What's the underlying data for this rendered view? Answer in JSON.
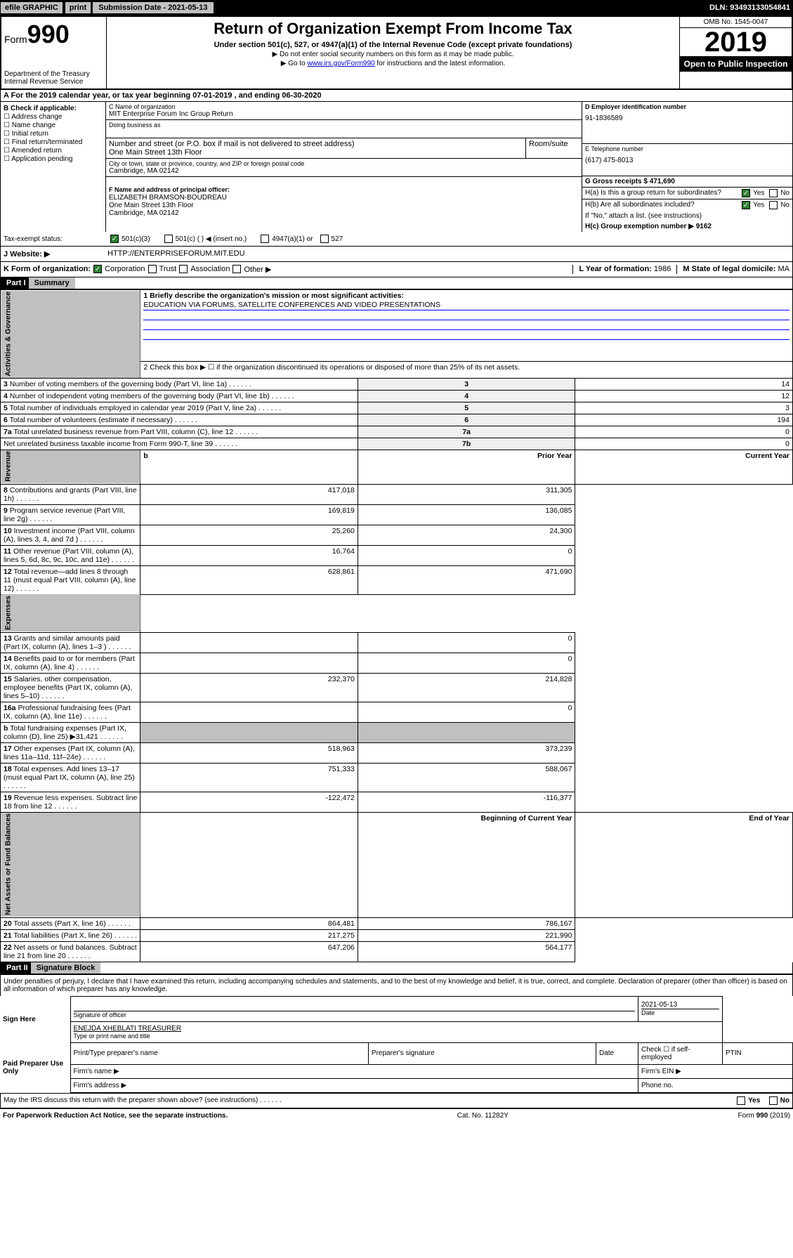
{
  "topbar": {
    "efile": "efile GRAPHIC",
    "print": "print",
    "sub_date_label": "Submission Date - 2021-05-13",
    "dln": "DLN: 93493133054841"
  },
  "header": {
    "form_label": "Form",
    "form_num": "990",
    "dept": "Department of the Treasury\nInternal Revenue Service",
    "title": "Return of Organization Exempt From Income Tax",
    "subtitle": "Under section 501(c), 527, or 4947(a)(1) of the Internal Revenue Code (except private foundations)",
    "note1": "▶ Do not enter social security numbers on this form as it may be made public.",
    "note2_pre": "▶ Go to ",
    "note2_link": "www.irs.gov/Form990",
    "note2_post": " for instructions and the latest information.",
    "omb": "OMB No. 1545-0047",
    "year": "2019",
    "open": "Open to Public Inspection"
  },
  "section_a": "A For the 2019 calendar year, or tax year beginning 07-01-2019    , and ending 06-30-2020",
  "col_b": {
    "hdr": "B Check if applicable:",
    "opts": [
      "Address change",
      "Name change",
      "Initial return",
      "Final return/terminated",
      "Amended return",
      "Application pending"
    ]
  },
  "org": {
    "name_lbl": "C Name of organization",
    "name": "MIT Enterprise Forum Inc Group Return",
    "dba_lbl": "Doing business as",
    "addr_lbl": "Number and street (or P.O. box if mail is not delivered to street address)",
    "room_lbl": "Room/suite",
    "addr": "One Main Street 13th Floor",
    "city_lbl": "City or town, state or province, country, and ZIP or foreign postal code",
    "city": "Cambridge, MA  02142",
    "officer_lbl": "F Name and address of principal officer:",
    "officer": "ELIZABETH BRAMSON-BOUDREAU\nOne Main Street 13th Floor\nCambridge, MA  02142"
  },
  "right": {
    "ein_lbl": "D Employer identification number",
    "ein": "91-1836589",
    "phone_lbl": "E Telephone number",
    "phone": "(617) 475-8013",
    "gross_lbl": "G Gross receipts $ 471,690",
    "ha": "H(a)  Is this a group return for subordinates?",
    "hb": "H(b)  Are all subordinates included?",
    "hb_note": "If \"No,\" attach a list. (see instructions)",
    "hc": "H(c)  Group exemption number ▶   9162",
    "yes": "Yes",
    "no": "No"
  },
  "tax_exempt": {
    "lbl": "Tax-exempt status:",
    "opts": [
      "501(c)(3)",
      "501(c) (  ) ◀ (insert no.)",
      "4947(a)(1) or",
      "527"
    ]
  },
  "website": {
    "lbl": "J  Website: ▶",
    "val": "HTTP://ENTERPRISEFORUM.MIT.EDU"
  },
  "korg": {
    "lbl": "K Form of organization:",
    "opts": [
      "Corporation",
      "Trust",
      "Association",
      "Other ▶"
    ],
    "year_lbl": "L Year of formation:",
    "year": "1986",
    "state_lbl": "M State of legal domicile:",
    "state": "MA"
  },
  "part1": {
    "hdr": "Part I",
    "title": "Summary"
  },
  "summary": {
    "q1": "1  Briefly describe the organization's mission or most significant activities:",
    "mission": "EDUCATION VIA FORUMS, SATELLITE CONFERENCES AND VIDEO PRESENTATIONS",
    "q2": "2   Check this box ▶ ☐  if the organization discontinued its operations or disposed of more than 25% of its net assets.",
    "rows_gov": [
      {
        "n": "3",
        "t": "Number of voting members of the governing body (Part VI, line 1a)",
        "c": "3",
        "v": "14"
      },
      {
        "n": "4",
        "t": "Number of independent voting members of the governing body (Part VI, line 1b)",
        "c": "4",
        "v": "12"
      },
      {
        "n": "5",
        "t": "Total number of individuals employed in calendar year 2019 (Part V, line 2a)",
        "c": "5",
        "v": "3"
      },
      {
        "n": "6",
        "t": "Total number of volunteers (estimate if necessary)",
        "c": "6",
        "v": "194"
      },
      {
        "n": "7a",
        "t": "Total unrelated business revenue from Part VIII, column (C), line 12",
        "c": "7a",
        "v": "0"
      },
      {
        "n": "",
        "t": "Net unrelated business taxable income from Form 990-T, line 39",
        "c": "7b",
        "v": "0"
      }
    ],
    "col_hdrs": {
      "b": "b",
      "prior": "Prior Year",
      "current": "Current Year"
    },
    "rows_rev": [
      {
        "n": "8",
        "t": "Contributions and grants (Part VIII, line 1h)",
        "p": "417,018",
        "c": "311,305"
      },
      {
        "n": "9",
        "t": "Program service revenue (Part VIII, line 2g)",
        "p": "169,819",
        "c": "136,085"
      },
      {
        "n": "10",
        "t": "Investment income (Part VIII, column (A), lines 3, 4, and 7d )",
        "p": "25,260",
        "c": "24,300"
      },
      {
        "n": "11",
        "t": "Other revenue (Part VIII, column (A), lines 5, 6d, 8c, 9c, 10c, and 11e)",
        "p": "16,764",
        "c": "0"
      },
      {
        "n": "12",
        "t": "Total revenue—add lines 8 through 11 (must equal Part VIII, column (A), line 12)",
        "p": "628,861",
        "c": "471,690"
      }
    ],
    "rows_exp": [
      {
        "n": "13",
        "t": "Grants and similar amounts paid (Part IX, column (A), lines 1–3 )",
        "p": "",
        "c": "0"
      },
      {
        "n": "14",
        "t": "Benefits paid to or for members (Part IX, column (A), line 4)",
        "p": "",
        "c": "0"
      },
      {
        "n": "15",
        "t": "Salaries, other compensation, employee benefits (Part IX, column (A), lines 5–10)",
        "p": "232,370",
        "c": "214,828"
      },
      {
        "n": "16a",
        "t": "Professional fundraising fees (Part IX, column (A), line 11e)",
        "p": "",
        "c": "0"
      },
      {
        "n": "b",
        "t": "Total fundraising expenses (Part IX, column (D), line 25) ▶31,421",
        "p": "",
        "c": "",
        "shaded": true
      },
      {
        "n": "17",
        "t": "Other expenses (Part IX, column (A), lines 11a–11d, 11f–24e)",
        "p": "518,963",
        "c": "373,239"
      },
      {
        "n": "18",
        "t": "Total expenses. Add lines 13–17 (must equal Part IX, column (A), line 25)",
        "p": "751,333",
        "c": "588,067"
      },
      {
        "n": "19",
        "t": "Revenue less expenses. Subtract line 18 from line 12",
        "p": "-122,472",
        "c": "-116,377"
      }
    ],
    "col_hdrs2": {
      "begin": "Beginning of Current Year",
      "end": "End of Year"
    },
    "rows_net": [
      {
        "n": "20",
        "t": "Total assets (Part X, line 16)",
        "p": "864,481",
        "c": "786,167"
      },
      {
        "n": "21",
        "t": "Total liabilities (Part X, line 26)",
        "p": "217,275",
        "c": "221,990"
      },
      {
        "n": "22",
        "t": "Net assets or fund balances. Subtract line 21 from line 20",
        "p": "647,206",
        "c": "564,177"
      }
    ],
    "vert": {
      "gov": "Activities & Governance",
      "rev": "Revenue",
      "exp": "Expenses",
      "net": "Net Assets or Fund Balances"
    }
  },
  "part2": {
    "hdr": "Part II",
    "title": "Signature Block"
  },
  "sig": {
    "perjury": "Under penalties of perjury, I declare that I have examined this return, including accompanying schedules and statements, and to the best of my knowledge and belief, it is true, correct, and complete. Declaration of preparer (other than officer) is based on all information of which preparer has any knowledge.",
    "sign_here": "Sign Here",
    "sig_officer": "Signature of officer",
    "date": "2021-05-13",
    "date_lbl": "Date",
    "name": "ENEJDA XHEBLATI TREASURER",
    "name_lbl": "Type or print name and title",
    "paid": "Paid Preparer Use Only",
    "prep_name": "Print/Type preparer's name",
    "prep_sig": "Preparer's signature",
    "prep_date": "Date",
    "self_emp": "Check ☐ if self-employed",
    "ptin": "PTIN",
    "firm_name": "Firm's name    ▶",
    "firm_ein": "Firm's EIN ▶",
    "firm_addr": "Firm's address ▶",
    "phone": "Phone no.",
    "discuss": "May the IRS discuss this return with the preparer shown above? (see instructions)"
  },
  "footer": {
    "pra": "For Paperwork Reduction Act Notice, see the separate instructions.",
    "cat": "Cat. No. 11282Y",
    "form": "Form 990 (2019)"
  }
}
